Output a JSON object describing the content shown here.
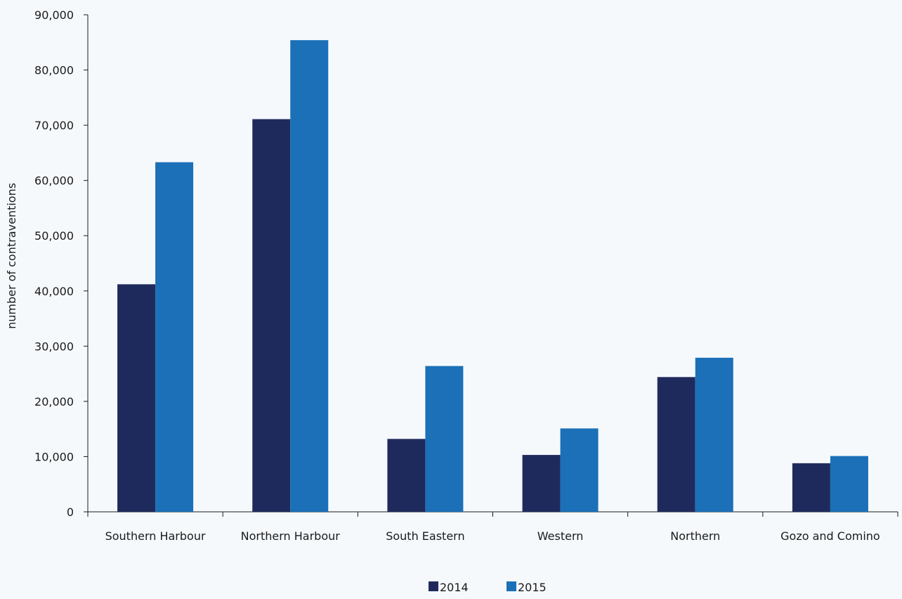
{
  "chart_data": {
    "type": "bar",
    "categories": [
      "Southern Harbour",
      "Northern Harbour",
      "South Eastern",
      "Western",
      "Northern",
      "Gozo and Comino"
    ],
    "series": [
      {
        "name": "2014",
        "color": "#1f2a5c",
        "values": [
          41200,
          71100,
          13200,
          10300,
          24400,
          8800
        ]
      },
      {
        "name": "2015",
        "color": "#1b70b8",
        "values": [
          63300,
          85400,
          26400,
          15100,
          27900,
          10100
        ]
      }
    ],
    "ylabel": "number of contraventions",
    "xlabel": "",
    "title": "",
    "ylim": [
      0,
      90000
    ],
    "y_ticks": [
      "0",
      "10,000",
      "20,000",
      "30,000",
      "40,000",
      "50,000",
      "60,000",
      "70,000",
      "80,000",
      "90,000"
    ],
    "y_tick_values": [
      0,
      10000,
      20000,
      30000,
      40000,
      50000,
      60000,
      70000,
      80000,
      90000
    ],
    "grid": false,
    "legend_position": "bottom-center"
  }
}
